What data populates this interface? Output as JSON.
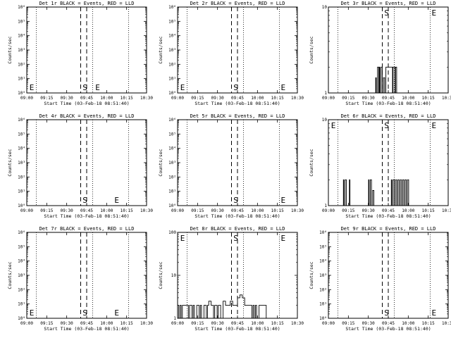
{
  "common": {
    "xticks": [
      "09:00",
      "09:15",
      "09:30",
      "09:45",
      "10:00",
      "10:15",
      "10:30"
    ],
    "xlabel": "Start Time (03-Feb-18 08:51:40)",
    "ylabel": "Counts/sec",
    "start_marker": "S",
    "end_marker": "E"
  },
  "chart_data": [
    {
      "type": "line",
      "title": "Det 1r BLACK = Events, RED = LLD",
      "scale": "log",
      "ytick_labels": [
        "10⁰",
        "10¹",
        "10²",
        "10³",
        "10⁴",
        "10⁵",
        "10⁶"
      ],
      "ytick_values": [
        1,
        10,
        100,
        1000,
        10000,
        100000,
        1000000
      ],
      "ylim": [
        1,
        1000000
      ],
      "xlim_min": [
        0,
        100
      ],
      "dotted_x_min": [
        8,
        55,
        85
      ],
      "dashed_x_min": [
        45,
        50
      ],
      "label_x_min": {
        "E_left": 1,
        "S": 46,
        "E_right": 56
      },
      "label_row": "bottom",
      "series": []
    },
    {
      "type": "line",
      "title": "Det 2r BLACK = Events, RED = LLD",
      "scale": "log",
      "ytick_labels": [
        "10⁰",
        "10¹",
        "10²",
        "10³",
        "10⁴",
        "10⁵",
        "10⁶"
      ],
      "ytick_values": [
        1,
        10,
        100,
        1000,
        10000,
        100000,
        1000000
      ],
      "ylim": [
        1,
        1000000
      ],
      "xlim_min": [
        0,
        100
      ],
      "dotted_x_min": [
        8,
        55,
        85
      ],
      "dashed_x_min": [
        45,
        50
      ],
      "label_x_min": {
        "E_left": 1,
        "S": 46,
        "E_right": 85
      },
      "label_row": "bottom",
      "series": []
    },
    {
      "type": "line",
      "title": "Det 3r BLACK = Events, RED = LLD",
      "scale": "log",
      "ytick_labels": [
        "1",
        "10"
      ],
      "ytick_values": [
        1,
        10
      ],
      "ylim": [
        1,
        10
      ],
      "xlim_min": [
        0,
        100
      ],
      "dotted_x_min": [
        8,
        55,
        85
      ],
      "dashed_x_min": [
        45,
        50
      ],
      "label_x_min": {
        "S": 46,
        "E_right": 85
      },
      "label_row": "top",
      "series": [
        {
          "name": "Events",
          "points": [
            [
              39,
              1
            ],
            [
              39.5,
              1.5
            ],
            [
              40,
              1
            ],
            [
              41,
              2
            ],
            [
              42,
              1
            ],
            [
              42.5,
              2
            ],
            [
              43,
              1
            ],
            [
              44,
              2
            ],
            [
              45,
              1
            ],
            [
              46,
              1.5
            ],
            [
              47,
              1
            ],
            [
              48,
              2
            ],
            [
              53,
              2
            ],
            [
              53.5,
              1
            ],
            [
              54,
              2
            ],
            [
              55,
              2
            ],
            [
              55.5,
              1
            ],
            [
              56,
              2
            ],
            [
              57,
              1
            ],
            [
              60,
              1
            ]
          ]
        }
      ]
    },
    {
      "type": "line",
      "title": "Det 4r BLACK = Events, RED = LLD",
      "scale": "log",
      "ytick_labels": [
        "10⁰",
        "10¹",
        "10²",
        "10³",
        "10⁴",
        "10⁵",
        "10⁶"
      ],
      "ytick_values": [
        1,
        10,
        100,
        1000,
        10000,
        100000,
        1000000
      ],
      "ylim": [
        1,
        1000000
      ],
      "xlim_min": [
        0,
        100
      ],
      "dotted_x_min": [
        8,
        55,
        85
      ],
      "dashed_x_min": [
        45,
        50
      ],
      "label_x_min": {
        "S": 46,
        "E_right": 72
      },
      "label_row": "bottom",
      "series": []
    },
    {
      "type": "line",
      "title": "Det 5r BLACK = Events, RED = LLD",
      "scale": "log",
      "ytick_labels": [
        "10⁰",
        "10¹",
        "10²",
        "10³",
        "10⁴",
        "10⁵",
        "10⁶"
      ],
      "ytick_values": [
        1,
        10,
        100,
        1000,
        10000,
        100000,
        1000000
      ],
      "ylim": [
        1,
        1000000
      ],
      "xlim_min": [
        0,
        100
      ],
      "dotted_x_min": [
        8,
        55,
        85
      ],
      "dashed_x_min": [
        45,
        50
      ],
      "label_x_min": {
        "S": 46,
        "E_right": 85
      },
      "label_row": "bottom",
      "series": []
    },
    {
      "type": "line",
      "title": "Det 6r BLACK = Events, RED = LLD",
      "scale": "log",
      "ytick_labels": [
        "1",
        "10"
      ],
      "ytick_values": [
        1,
        10
      ],
      "ylim": [
        1,
        10
      ],
      "xlim_min": [
        0,
        100
      ],
      "dotted_x_min": [
        8,
        55,
        85
      ],
      "dashed_x_min": [
        45,
        50
      ],
      "label_x_min": {
        "E_left": 1,
        "S": 46,
        "E_right": 85
      },
      "label_row": "top",
      "series": [
        {
          "name": "Events",
          "points": [
            [
              12,
              1
            ],
            [
              12.5,
              2
            ],
            [
              13,
              1
            ],
            [
              14,
              2
            ],
            [
              15,
              1
            ],
            [
              17,
              1
            ],
            [
              17.5,
              2
            ],
            [
              18,
              1
            ],
            [
              33,
              1
            ],
            [
              33.5,
              2
            ],
            [
              34,
              1
            ],
            [
              35,
              2
            ],
            [
              36,
              1
            ],
            [
              37,
              1.5
            ],
            [
              38,
              1
            ],
            [
              52,
              1
            ],
            [
              52.5,
              2
            ],
            [
              53,
              1
            ],
            [
              54,
              2
            ],
            [
              55,
              1
            ],
            [
              56,
              2
            ],
            [
              57,
              1
            ],
            [
              58,
              2
            ],
            [
              59,
              1
            ],
            [
              60,
              2
            ],
            [
              61,
              1
            ],
            [
              62,
              2
            ],
            [
              63,
              1
            ],
            [
              64,
              2
            ],
            [
              65,
              1
            ],
            [
              66,
              2
            ],
            [
              67,
              1
            ],
            [
              68,
              1
            ]
          ]
        }
      ]
    },
    {
      "type": "line",
      "title": "Det 7r BLACK = Events, RED = LLD",
      "scale": "log",
      "ytick_labels": [
        "10⁰",
        "10¹",
        "10²",
        "10³",
        "10⁴",
        "10⁵",
        "10⁶"
      ],
      "ytick_values": [
        1,
        10,
        100,
        1000,
        10000,
        100000,
        1000000
      ],
      "ylim": [
        1,
        1000000
      ],
      "xlim_min": [
        0,
        100
      ],
      "dotted_x_min": [
        8,
        55,
        85
      ],
      "dashed_x_min": [
        45,
        50
      ],
      "label_x_min": {
        "E_left": 1,
        "S": 46,
        "E_right": 72
      },
      "label_row": "bottom",
      "series": []
    },
    {
      "type": "line",
      "title": "Det 8r BLACK = Events, RED = LLD",
      "scale": "log",
      "ytick_labels": [
        "1",
        "10",
        "100"
      ],
      "ytick_values": [
        1,
        10,
        100
      ],
      "ylim": [
        1,
        100
      ],
      "xlim_min": [
        0,
        100
      ],
      "dotted_x_min": [
        8,
        55,
        85
      ],
      "dashed_x_min": [
        45,
        50
      ],
      "label_x_min": {
        "E_left": 1,
        "S": 46,
        "E_right": 85
      },
      "label_row": "top",
      "series": [
        {
          "name": "Events",
          "points": [
            [
              0,
              2
            ],
            [
              1,
              1
            ],
            [
              2,
              2
            ],
            [
              3,
              1
            ],
            [
              4,
              2
            ],
            [
              8,
              2
            ],
            [
              9,
              1
            ],
            [
              10,
              2
            ],
            [
              12,
              1
            ],
            [
              13,
              2
            ],
            [
              14,
              1
            ],
            [
              16,
              2
            ],
            [
              18,
              1
            ],
            [
              19,
              2
            ],
            [
              20,
              1
            ],
            [
              22,
              2
            ],
            [
              24,
              1
            ],
            [
              25,
              2
            ],
            [
              26,
              2.5
            ],
            [
              28,
              2
            ],
            [
              30,
              1
            ],
            [
              31,
              2
            ],
            [
              33,
              1
            ],
            [
              34,
              2
            ],
            [
              36,
              1
            ],
            [
              38,
              2.5
            ],
            [
              40,
              2
            ],
            [
              42,
              2
            ],
            [
              44,
              2.5
            ],
            [
              46,
              2
            ],
            [
              48,
              2
            ],
            [
              50,
              3
            ],
            [
              52,
              3.5
            ],
            [
              54,
              3
            ],
            [
              56,
              2
            ],
            [
              58,
              2
            ],
            [
              60,
              2
            ],
            [
              62,
              1
            ],
            [
              63,
              2
            ],
            [
              64,
              1
            ],
            [
              65,
              2
            ],
            [
              66,
              1
            ],
            [
              68,
              2
            ],
            [
              70,
              2
            ],
            [
              72,
              2
            ],
            [
              74,
              1
            ],
            [
              76,
              1
            ]
          ]
        }
      ]
    },
    {
      "type": "line",
      "title": "Det 9r BLACK = Events, RED = LLD",
      "scale": "log",
      "ytick_labels": [
        "10⁰",
        "10¹",
        "10²",
        "10³",
        "10⁴",
        "10⁵",
        "10⁶"
      ],
      "ytick_values": [
        1,
        10,
        100,
        1000,
        10000,
        100000,
        1000000
      ],
      "ylim": [
        1,
        1000000
      ],
      "xlim_min": [
        0,
        100
      ],
      "dotted_x_min": [
        8,
        55,
        85
      ],
      "dashed_x_min": [
        45,
        50
      ],
      "label_x_min": {
        "S": 46,
        "E_right": 85
      },
      "label_row": "bottom",
      "series": []
    }
  ]
}
